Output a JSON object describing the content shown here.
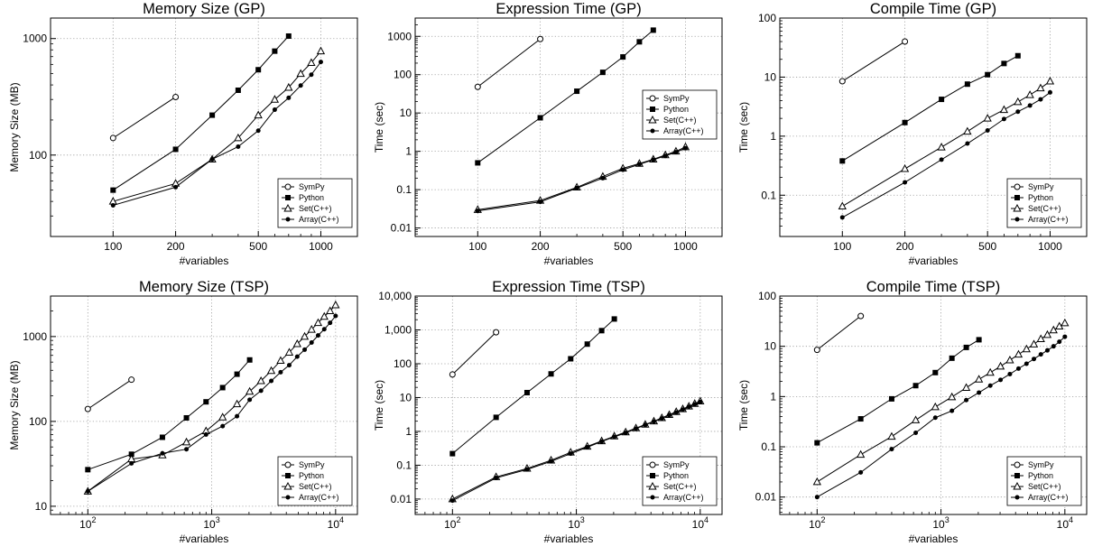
{
  "chart_data": [
    {
      "type": "line",
      "title": "Memory Size (GP)",
      "xlabel": "#variables",
      "ylabel": "Memory Size (MB)",
      "xscale": "log",
      "yscale": "log",
      "xlim": [
        50,
        1500
      ],
      "ylim": [
        20,
        1500
      ],
      "xticks": [
        100,
        200,
        500,
        1000
      ],
      "xtick_labels": [
        "100",
        "200",
        "500",
        "1000"
      ],
      "xminor": [
        300,
        400,
        600,
        700,
        800,
        900
      ],
      "yticks": [
        100,
        1000
      ],
      "ytick_labels": [
        "100",
        "1000"
      ],
      "grid": true,
      "legend_position": "bottom-right",
      "series": [
        {
          "name": "SymPy",
          "marker": "open-circle",
          "x": [
            100,
            200
          ],
          "y": [
            140,
            315
          ]
        },
        {
          "name": "Python",
          "marker": "filled-square",
          "x": [
            100,
            200,
            300,
            400,
            500,
            600,
            700
          ],
          "y": [
            50,
            112,
            220,
            360,
            540,
            780,
            1050
          ]
        },
        {
          "name": "Set(C++)",
          "marker": "open-triangle",
          "x": [
            100,
            200,
            300,
            400,
            500,
            600,
            700,
            800,
            900,
            1000
          ],
          "y": [
            40,
            57,
            92,
            140,
            220,
            300,
            380,
            500,
            620,
            780
          ]
        },
        {
          "name": "Array(C++)",
          "marker": "filled-circle",
          "x": [
            100,
            200,
            300,
            400,
            500,
            600,
            700,
            800,
            900,
            1000
          ],
          "y": [
            37,
            53,
            92,
            118,
            162,
            245,
            310,
            395,
            490,
            630
          ]
        }
      ]
    },
    {
      "type": "line",
      "title": "Expression Time (GP)",
      "xlabel": "#variables",
      "ylabel": "Time (sec)",
      "xscale": "log",
      "yscale": "log",
      "xlim": [
        50,
        1500
      ],
      "ylim": [
        0.006,
        3000
      ],
      "xticks": [
        100,
        200,
        500,
        1000
      ],
      "xtick_labels": [
        "100",
        "200",
        "500",
        "1000"
      ],
      "xminor": [
        300,
        400,
        600,
        700,
        800,
        900
      ],
      "yticks": [
        0.01,
        0.1,
        1,
        10,
        100,
        1000
      ],
      "ytick_labels": [
        "0.01",
        "0.1",
        "1",
        "10",
        "100",
        "1000"
      ],
      "grid": true,
      "legend_position": "middle-right",
      "series": [
        {
          "name": "SymPy",
          "marker": "open-circle",
          "x": [
            100,
            200
          ],
          "y": [
            48,
            850
          ]
        },
        {
          "name": "Python",
          "marker": "filled-square",
          "x": [
            100,
            200,
            300,
            400,
            500,
            600,
            700
          ],
          "y": [
            0.5,
            7.5,
            37,
            115,
            290,
            720,
            1450
          ]
        },
        {
          "name": "Set(C++)",
          "marker": "open-triangle",
          "x": [
            100,
            200,
            300,
            400,
            500,
            600,
            700,
            800,
            900,
            1000
          ],
          "y": [
            0.03,
            0.052,
            0.115,
            0.22,
            0.36,
            0.48,
            0.62,
            0.8,
            1.0,
            1.3
          ]
        },
        {
          "name": "Array(C++)",
          "marker": "filled-circle",
          "x": [
            100,
            200,
            300,
            400,
            500,
            600,
            700,
            800,
            900,
            1000
          ],
          "y": [
            0.028,
            0.048,
            0.11,
            0.2,
            0.33,
            0.46,
            0.6,
            0.76,
            0.95,
            1.2
          ]
        }
      ]
    },
    {
      "type": "line",
      "title": "Compile Time (GP)",
      "xlabel": "#variables",
      "ylabel": "Time (sec)",
      "xscale": "log",
      "yscale": "log",
      "xlim": [
        50,
        1500
      ],
      "ylim": [
        0.02,
        100
      ],
      "xticks": [
        100,
        200,
        500,
        1000
      ],
      "xtick_labels": [
        "100",
        "200",
        "500",
        "1000"
      ],
      "xminor": [
        300,
        400,
        600,
        700,
        800,
        900
      ],
      "yticks": [
        0.1,
        1,
        10,
        100
      ],
      "ytick_labels": [
        "0.1",
        "1",
        "10",
        "100"
      ],
      "grid": true,
      "legend_position": "bottom-right",
      "series": [
        {
          "name": "SymPy",
          "marker": "open-circle",
          "x": [
            100,
            200
          ],
          "y": [
            8.5,
            40
          ]
        },
        {
          "name": "Python",
          "marker": "filled-square",
          "x": [
            100,
            200,
            300,
            400,
            500,
            600,
            700
          ],
          "y": [
            0.38,
            1.7,
            4.2,
            7.6,
            11,
            17,
            23
          ]
        },
        {
          "name": "Set(C++)",
          "marker": "open-triangle",
          "x": [
            100,
            200,
            300,
            400,
            500,
            600,
            700,
            800,
            900,
            1000
          ],
          "y": [
            0.065,
            0.28,
            0.65,
            1.2,
            2.0,
            2.8,
            3.8,
            5.0,
            6.5,
            8.5
          ]
        },
        {
          "name": "Array(C++)",
          "marker": "filled-circle",
          "x": [
            100,
            200,
            300,
            400,
            500,
            600,
            700,
            800,
            900,
            1000
          ],
          "y": [
            0.042,
            0.165,
            0.4,
            0.75,
            1.25,
            1.95,
            2.6,
            3.3,
            4.2,
            5.5
          ]
        }
      ]
    },
    {
      "type": "line",
      "title": "Memory Size (TSP)",
      "xlabel": "#variables",
      "ylabel": "Memory Size (MB)",
      "xscale": "log",
      "yscale": "log",
      "xlim": [
        50,
        15000
      ],
      "ylim": [
        8,
        3000
      ],
      "xticks": [
        100,
        1000,
        10000
      ],
      "xtick_labels": [
        "10^2",
        "10^3",
        "10^4"
      ],
      "yticks": [
        10,
        100,
        1000
      ],
      "ytick_labels": [
        "10",
        "100",
        "1000"
      ],
      "grid": true,
      "legend_position": "bottom-right",
      "series": [
        {
          "name": "SymPy",
          "marker": "open-circle",
          "x": [
            100,
            225
          ],
          "y": [
            140,
            310
          ]
        },
        {
          "name": "Python",
          "marker": "filled-square",
          "x": [
            100,
            225,
            400,
            625,
            900,
            1225,
            1600,
            2025
          ],
          "y": [
            27,
            41,
            65,
            110,
            170,
            250,
            360,
            530
          ]
        },
        {
          "name": "Set(C++)",
          "marker": "open-triangle",
          "x": [
            100,
            225,
            400,
            625,
            900,
            1225,
            1600,
            2025,
            2500,
            3025,
            3600,
            4225,
            4900,
            5625,
            6400,
            7225,
            8100,
            9025,
            10000
          ],
          "y": [
            15,
            36,
            40,
            57,
            77,
            112,
            160,
            225,
            300,
            395,
            520,
            650,
            820,
            1000,
            1210,
            1450,
            1720,
            2000,
            2350
          ]
        },
        {
          "name": "Array(C++)",
          "marker": "filled-circle",
          "x": [
            100,
            225,
            400,
            625,
            900,
            1225,
            1600,
            2025,
            2500,
            3025,
            3600,
            4225,
            4900,
            5625,
            6400,
            7225,
            8100,
            9025,
            10000
          ],
          "y": [
            15,
            32,
            42,
            47,
            70,
            88,
            115,
            180,
            230,
            300,
            380,
            460,
            580,
            700,
            850,
            1030,
            1220,
            1450,
            1750
          ]
        }
      ]
    },
    {
      "type": "line",
      "title": "Expression Time (TSP)",
      "xlabel": "#variables",
      "ylabel": "Time (sec)",
      "xscale": "log",
      "yscale": "log",
      "xlim": [
        50,
        15000
      ],
      "ylim": [
        0.0035,
        10000
      ],
      "xticks": [
        100,
        1000,
        10000
      ],
      "xtick_labels": [
        "10^2",
        "10^3",
        "10^4"
      ],
      "yticks": [
        0.01,
        0.1,
        1,
        10,
        100,
        1000,
        10000
      ],
      "ytick_labels": [
        "0.01",
        "0.1",
        "1",
        "10",
        "100",
        "1,000",
        "10,000"
      ],
      "grid": true,
      "legend_position": "bottom-right",
      "series": [
        {
          "name": "SymPy",
          "marker": "open-circle",
          "x": [
            100,
            225
          ],
          "y": [
            48,
            850
          ]
        },
        {
          "name": "Python",
          "marker": "filled-square",
          "x": [
            100,
            225,
            400,
            625,
            900,
            1225,
            1600,
            2025
          ],
          "y": [
            0.22,
            2.6,
            14,
            50,
            140,
            380,
            950,
            2100
          ]
        },
        {
          "name": "Set(C++)",
          "marker": "open-triangle",
          "x": [
            100,
            225,
            400,
            625,
            900,
            1225,
            1600,
            2025,
            2500,
            3025,
            3600,
            4225,
            4900,
            5625,
            6400,
            7225,
            8100,
            9025,
            10000
          ],
          "y": [
            0.01,
            0.045,
            0.08,
            0.14,
            0.24,
            0.36,
            0.52,
            0.72,
            0.95,
            1.25,
            1.6,
            2.0,
            2.5,
            3.1,
            3.8,
            4.6,
            5.5,
            6.6,
            7.8
          ]
        },
        {
          "name": "Array(C++)",
          "marker": "filled-circle",
          "x": [
            100,
            225,
            400,
            625,
            900,
            1225,
            1600,
            2025,
            2500,
            3025,
            3600,
            4225,
            4900,
            5625,
            6400,
            7225,
            8100,
            9025,
            10000
          ],
          "y": [
            0.009,
            0.042,
            0.075,
            0.13,
            0.22,
            0.34,
            0.5,
            0.69,
            0.9,
            1.2,
            1.55,
            1.95,
            2.4,
            3.0,
            3.6,
            4.4,
            5.3,
            6.3,
            7.4
          ]
        }
      ]
    },
    {
      "type": "line",
      "title": "Compile Time (TSP)",
      "xlabel": "#variables",
      "ylabel": "Time (sec)",
      "xscale": "log",
      "yscale": "log",
      "xlim": [
        50,
        15000
      ],
      "ylim": [
        0.0045,
        100
      ],
      "xticks": [
        100,
        1000,
        10000
      ],
      "xtick_labels": [
        "10^2",
        "10^3",
        "10^4"
      ],
      "yticks": [
        0.01,
        0.1,
        1,
        10,
        100
      ],
      "ytick_labels": [
        "0.01",
        "0.1",
        "1",
        "10",
        "100"
      ],
      "grid": true,
      "legend_position": "bottom-right",
      "series": [
        {
          "name": "SymPy",
          "marker": "open-circle",
          "x": [
            100,
            225
          ],
          "y": [
            8.5,
            40
          ]
        },
        {
          "name": "Python",
          "marker": "filled-square",
          "x": [
            100,
            225,
            400,
            625,
            900,
            1225,
            1600,
            2025
          ],
          "y": [
            0.12,
            0.36,
            0.9,
            1.65,
            3.0,
            5.8,
            9.5,
            13.5
          ]
        },
        {
          "name": "Set(C++)",
          "marker": "open-triangle",
          "x": [
            100,
            225,
            400,
            625,
            900,
            1225,
            1600,
            2025,
            2500,
            3025,
            3600,
            4225,
            4900,
            5625,
            6400,
            7225,
            8100,
            9025,
            10000
          ],
          "y": [
            0.02,
            0.07,
            0.16,
            0.34,
            0.62,
            0.98,
            1.5,
            2.2,
            3.0,
            4.0,
            5.3,
            6.9,
            8.8,
            11,
            14,
            17,
            21,
            25,
            29
          ]
        },
        {
          "name": "Array(C++)",
          "marker": "filled-circle",
          "x": [
            100,
            225,
            400,
            625,
            900,
            1225,
            1600,
            2025,
            2500,
            3025,
            3600,
            4225,
            4900,
            5625,
            6400,
            7225,
            8100,
            9025,
            10000
          ],
          "y": [
            0.01,
            0.031,
            0.09,
            0.19,
            0.38,
            0.52,
            0.85,
            1.2,
            1.65,
            2.15,
            2.8,
            3.6,
            4.5,
            5.6,
            6.9,
            8.3,
            10,
            12.3,
            15.5
          ]
        }
      ]
    }
  ]
}
